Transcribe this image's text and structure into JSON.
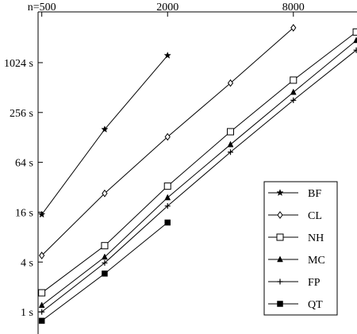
{
  "chart_data": {
    "type": "line",
    "title": "",
    "xlabel": "",
    "ylabel": "",
    "x_scale": "log2",
    "y_scale": "log2",
    "x_ticks": [
      {
        "value": 500,
        "label": "n=500"
      },
      {
        "value": 2000,
        "label": "2000"
      },
      {
        "value": 8000,
        "label": "8000"
      }
    ],
    "y_ticks": [
      {
        "value": 1,
        "label": "1 s"
      },
      {
        "value": 4,
        "label": "4 s"
      },
      {
        "value": 16,
        "label": "16 s"
      },
      {
        "value": 64,
        "label": "64 s"
      },
      {
        "value": 256,
        "label": "256 s"
      },
      {
        "value": 1024,
        "label": "1024 s"
      }
    ],
    "xlim": [
      480,
      17000
    ],
    "ylim": [
      0.72,
      4200
    ],
    "grid": false,
    "legend_position": "bottom-right",
    "series": [
      {
        "name": "BF",
        "marker": "star",
        "x": [
          500,
          1000,
          2000
        ],
        "y": [
          15,
          160,
          1250
        ]
      },
      {
        "name": "CL",
        "marker": "diamond",
        "x": [
          500,
          1000,
          2000,
          4000,
          8000
        ],
        "y": [
          4.8,
          27,
          130,
          580,
          2700
        ]
      },
      {
        "name": "NH",
        "marker": "square-open",
        "x": [
          500,
          1000,
          2000,
          4000,
          8000,
          16000
        ],
        "y": [
          1.7,
          6.3,
          33,
          150,
          630,
          2400
        ]
      },
      {
        "name": "MC",
        "marker": "triangle",
        "x": [
          500,
          1000,
          2000,
          4000,
          8000,
          16000
        ],
        "y": [
          1.2,
          4.6,
          24,
          105,
          450,
          1900
        ]
      },
      {
        "name": "FP",
        "marker": "plus",
        "x": [
          500,
          1000,
          2000,
          4000,
          8000,
          16000
        ],
        "y": [
          1.0,
          3.9,
          19,
          85,
          360,
          1450
        ]
      },
      {
        "name": "QT",
        "marker": "square-filled",
        "x": [
          500,
          1000,
          2000
        ],
        "y": [
          0.78,
          2.9,
          12
        ]
      }
    ]
  }
}
